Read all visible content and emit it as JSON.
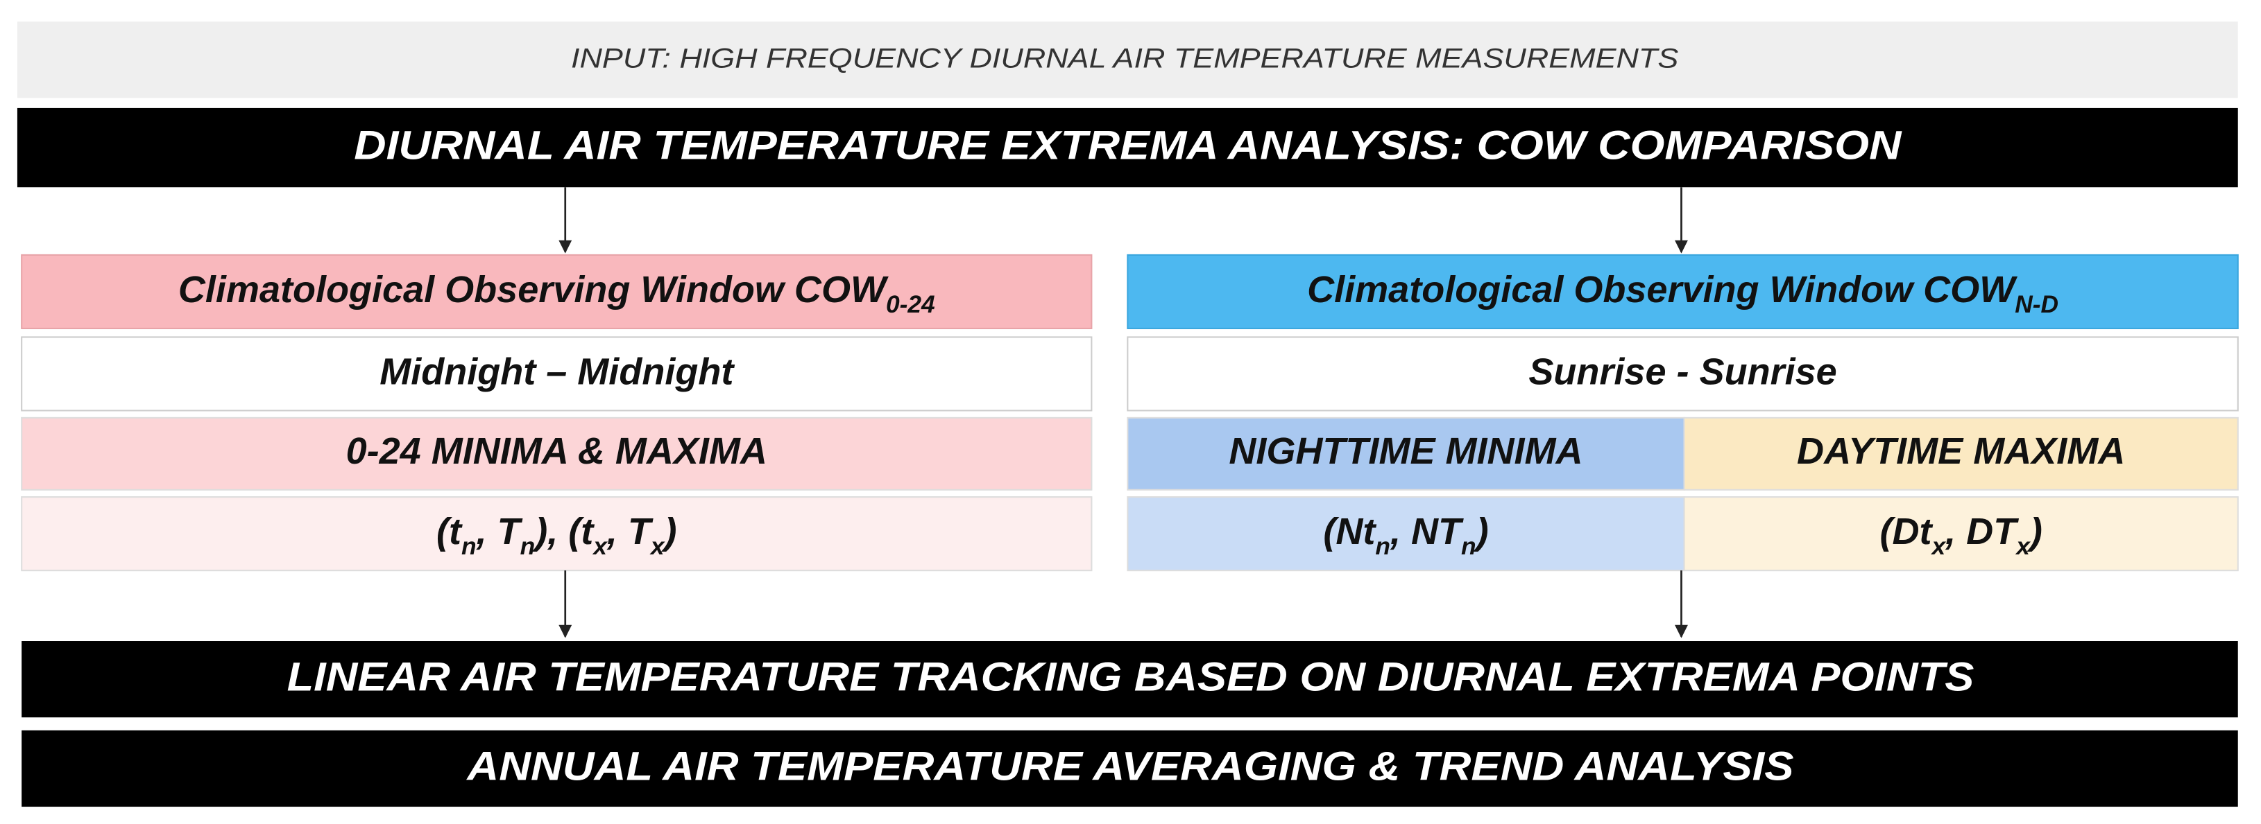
{
  "input": "INPUT: HIGH FREQUENCY DIURNAL AIR TEMPERATURE MEASUREMENTS",
  "analysis": "DIURNAL AIR TEMPERATURE EXTREMA ANALYSIS: COW COMPARISON",
  "left": {
    "title": [
      "Climatological Observing Window COW",
      "0-24"
    ],
    "window": "Midnight – Midnight",
    "extrema": "0-24 MINIMA & MAXIMA",
    "formula": [
      "(t",
      "n",
      ",  T",
      "n",
      "), (t",
      "x",
      ",  T",
      "x",
      ")"
    ]
  },
  "right": {
    "title": [
      "Climatological Observing Window COW",
      "N-D"
    ],
    "window": "Sunrise - Sunrise",
    "night": {
      "extrema": "NIGHTTIME MINIMA",
      "formula": [
        "(Nt",
        "n",
        ",  NT",
        "n",
        ")"
      ]
    },
    "day": {
      "extrema": "DAYTIME MAXIMA",
      "formula": [
        "(Dt",
        "x",
        ",  DT",
        "x",
        ")"
      ]
    }
  },
  "tracking": "LINEAR AIR TEMPERATURE TRACKING BASED ON DIURNAL EXTREMA POINTS",
  "averaging": "ANNUAL AIR TEMPERATURE AVERAGING & TREND ANALYSIS"
}
